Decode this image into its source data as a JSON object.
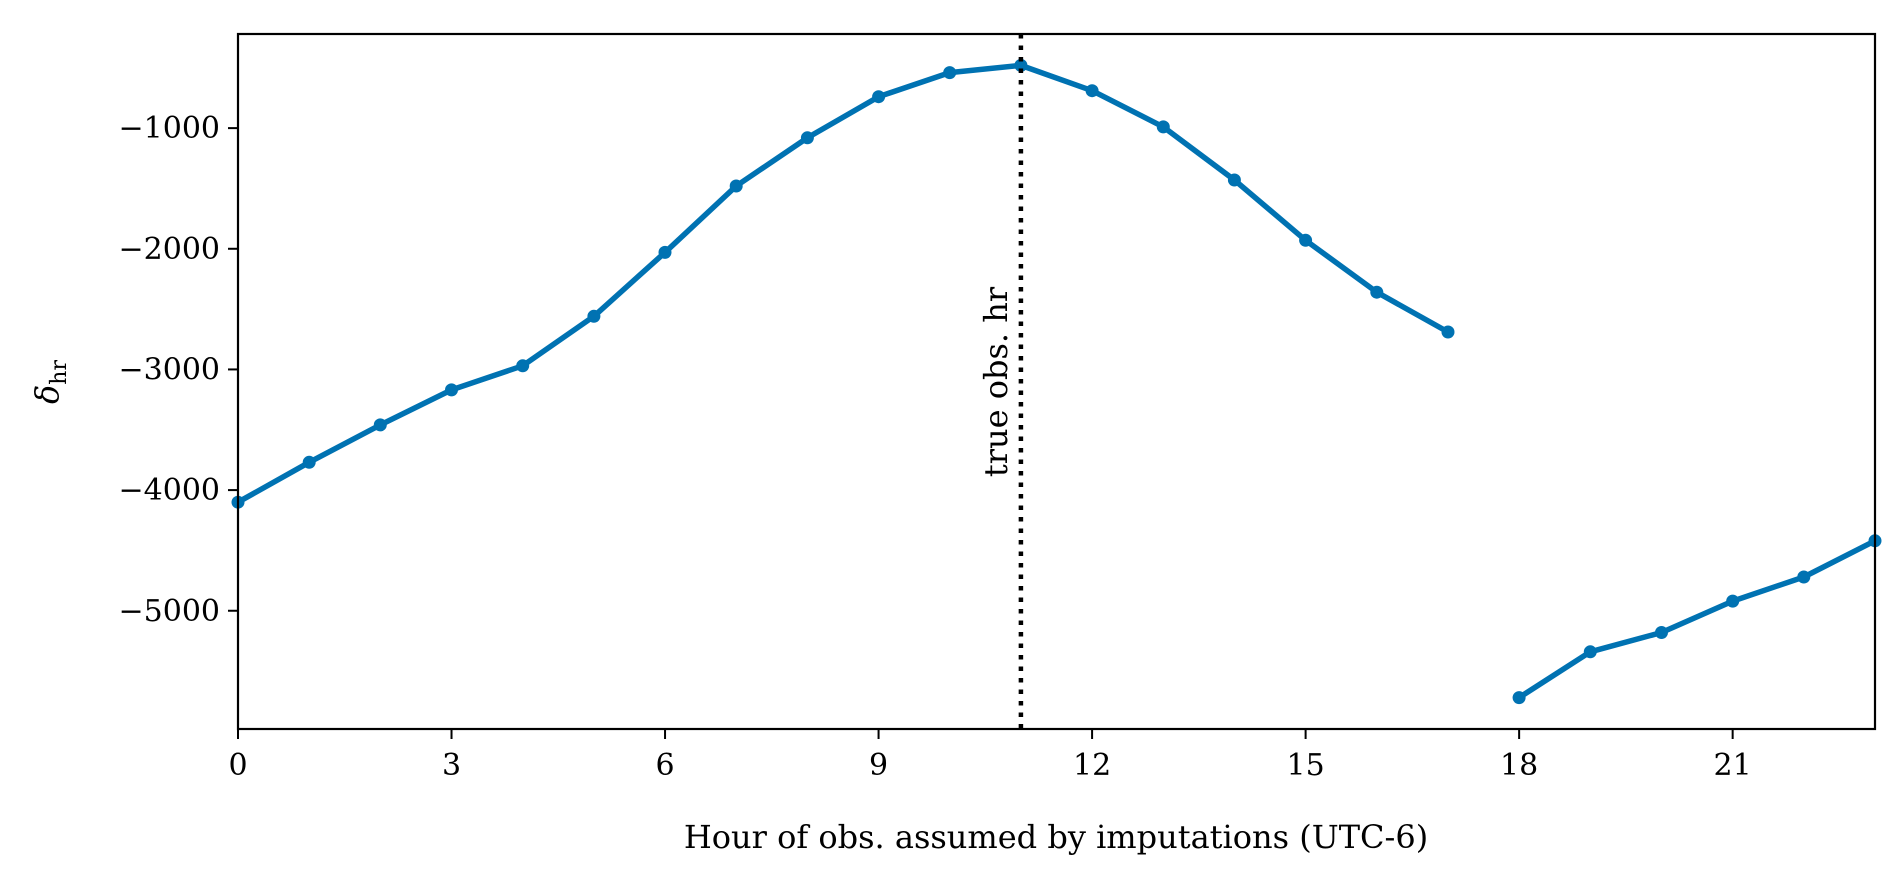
{
  "chart_data": {
    "type": "line",
    "xlabel": "Hour of obs. assumed by imputations (UTC-6)",
    "ylabel": "δ",
    "ylabel_sub": "hr",
    "xlim": [
      0,
      23
    ],
    "ylim": [
      -5980,
      -220
    ],
    "x_ticks": [
      0,
      3,
      6,
      9,
      12,
      15,
      18,
      21
    ],
    "y_ticks": [
      -5000,
      -4000,
      -3000,
      -2000,
      -1000
    ],
    "y_tick_labels": [
      "−5000",
      "−4000",
      "−3000",
      "−2000",
      "−1000"
    ],
    "grid": false,
    "series": [
      {
        "segments": [
          {
            "x": [
              0,
              1,
              2,
              3,
              4,
              5,
              6,
              7,
              8,
              9,
              10,
              11,
              12,
              13,
              14,
              15,
              16,
              17
            ],
            "y": [
              -4100,
              -3770,
              -3460,
              -3170,
              -2970,
              -2560,
              -2030,
              -1480,
              -1080,
              -740,
              -540,
              -480,
              -690,
              -990,
              -1430,
              -1930,
              -2360,
              -2690
            ]
          },
          {
            "x": [
              18,
              19,
              20,
              21,
              22,
              23
            ],
            "y": [
              -5720,
              -5340,
              -5180,
              -4920,
              -4720,
              -4420
            ]
          }
        ]
      }
    ],
    "annotations": [
      {
        "type": "vline",
        "x": 11,
        "label": "true obs. hr"
      }
    ]
  },
  "colors": {
    "series": "#0072b2",
    "vline": "#000000"
  }
}
